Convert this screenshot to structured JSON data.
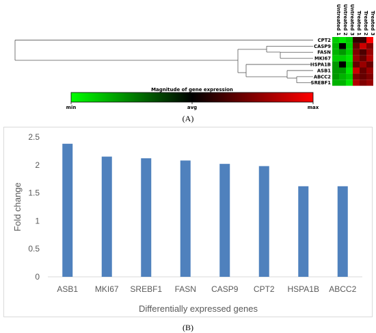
{
  "chart_data": [
    {
      "type": "heatmap",
      "panel_label": "(A)",
      "rows": [
        "CPT2",
        "CASP9",
        "FASN",
        "MKI67",
        "HSPA1B",
        "ASB1",
        "ABCC2",
        "SREBF1"
      ],
      "columns": [
        "Untreated 1",
        "Untreated 2",
        "Untreated 3",
        "Treated 1",
        "Treated 2",
        "Treated 3"
      ],
      "values": [
        [
          0.1,
          0.05,
          0.1,
          0.6,
          0.6,
          1.0
        ],
        [
          0.15,
          0.5,
          0.1,
          0.7,
          0.9,
          0.75
        ],
        [
          0.15,
          0.2,
          0.1,
          0.75,
          0.65,
          0.8
        ],
        [
          0.1,
          0.1,
          0.05,
          0.8,
          0.7,
          0.85
        ],
        [
          0.2,
          0.5,
          0.1,
          0.7,
          0.8,
          0.7
        ],
        [
          0.2,
          0.2,
          0.05,
          0.9,
          0.7,
          0.8
        ],
        [
          0.2,
          0.15,
          0.1,
          0.75,
          0.7,
          0.75
        ],
        [
          0.15,
          0.15,
          0.05,
          0.85,
          0.75,
          0.8
        ]
      ],
      "colorbar": {
        "title": "Magnitude of gene expression",
        "min_label": "min",
        "avg_label": "avg",
        "max_label": "max",
        "low_color": "#00ff00",
        "mid_color": "#000000",
        "high_color": "#ff0000"
      },
      "dendrogram": true
    },
    {
      "type": "bar",
      "panel_label": "(B)",
      "categories": [
        "ASB1",
        "MKI67",
        "SREBF1",
        "FASN",
        "CASP9",
        "CPT2",
        "HSPA1B",
        "ABCC2"
      ],
      "values": [
        2.38,
        2.15,
        2.12,
        2.08,
        2.02,
        1.98,
        1.62,
        1.62
      ],
      "xlabel": "Differentially expressed genes",
      "ylabel": "Fold change",
      "ylim": [
        0,
        2.5
      ],
      "yticks": [
        "0",
        "0.5",
        "1",
        "1.5",
        "2",
        "2.5"
      ],
      "bar_color": "#4f81bd",
      "grid": false
    }
  ]
}
